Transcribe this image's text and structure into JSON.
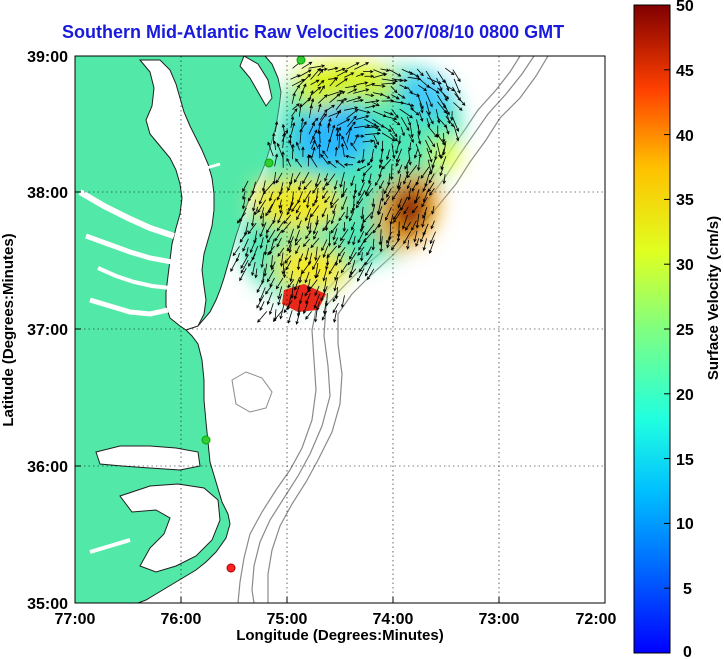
{
  "title": "Southern Mid-Atlantic Raw Velocities 2007/08/10 0800 GMT",
  "axes": {
    "x_label": "Longitude (Degrees:Minutes)",
    "y_label": "Latitude (Degrees:Minutes)",
    "x_ticks": [
      "77:00",
      "76:00",
      "75:00",
      "74:00",
      "73:00",
      "72:00"
    ],
    "y_ticks": [
      "39:00",
      "38:00",
      "37:00",
      "36:00",
      "35:00"
    ],
    "x_range_deg_west": [
      77,
      72
    ],
    "y_range_deg_north": [
      35,
      39
    ],
    "grid": "dotted"
  },
  "colorbar": {
    "label": "Surface Velocity (cm/s)",
    "ticks": [
      "50",
      "45",
      "40",
      "35",
      "30",
      "25",
      "20",
      "15",
      "10",
      "5",
      "0"
    ],
    "range": [
      0,
      50
    ],
    "colormap": "jet"
  },
  "colors": {
    "land": "#52e8a8",
    "water": "#ffffff",
    "bathymetry": "#8a8a8a",
    "title": "#1a1adc",
    "station_green": "#33cc33",
    "station_red": "#ff2222"
  },
  "stations": [
    {
      "name": "station-green",
      "lon": 74.85,
      "lat": 38.96
    },
    {
      "name": "station-green",
      "lon": 75.17,
      "lat": 38.22
    },
    {
      "name": "station-green",
      "lon": 75.73,
      "lat": 36.18
    },
    {
      "name": "station-red",
      "lon": 75.52,
      "lat": 35.25
    }
  ]
}
